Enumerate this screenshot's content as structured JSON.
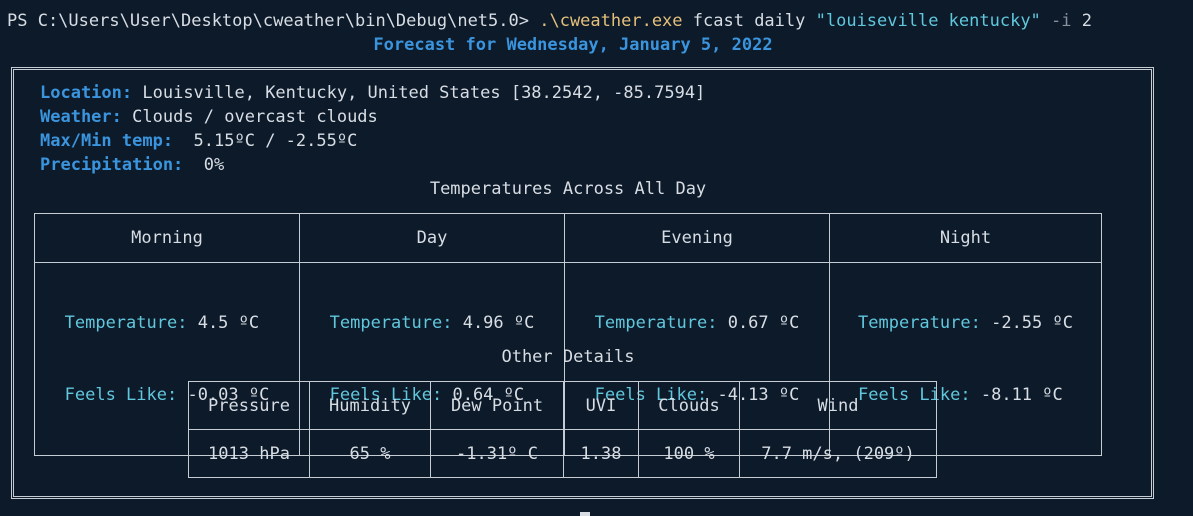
{
  "terminal": {
    "prompt": "PS C:\\Users\\User\\Desktop\\cweather\\bin\\Debug\\net5.0>",
    "executable": ".\\cweather.exe",
    "args": "fcast daily",
    "quoted_arg": "\"louiseville kentucky\"",
    "flag": "-i",
    "flag_value": "2"
  },
  "forecast": {
    "title": "Forecast for Wednesday, January 5, 2022",
    "location_label": "Location:",
    "location_value": "Louisville, Kentucky, United States [38.2542, -85.7594]",
    "weather_label": "Weather:",
    "weather_value": "Clouds / overcast clouds",
    "temp_label": "Max/Min temp:",
    "temp_value": "5.15ºC / -2.55ºC",
    "precip_label": "Precipitation:",
    "precip_value": "0%"
  },
  "temperatures": {
    "title": "Temperatures Across All Day",
    "temp_label": "Temperature:",
    "feels_label": "Feels Like:",
    "periods": [
      {
        "name": "Morning",
        "temp": "4.5 ºC",
        "feels": "-0.03 ºC"
      },
      {
        "name": "Day",
        "temp": "4.96 ºC",
        "feels": "0.64 ºC"
      },
      {
        "name": "Evening",
        "temp": "0.67 ºC",
        "feels": "-4.13 ºC"
      },
      {
        "name": "Night",
        "temp": "-2.55 ºC",
        "feels": "-8.11 ºC"
      }
    ]
  },
  "details": {
    "title": "Other Details",
    "headers": [
      "Pressure",
      "Humidity",
      "Dew Point",
      "UVI",
      "Clouds",
      "Wind"
    ],
    "values": [
      "1013 hPa",
      "65 %",
      "-1.31º C",
      "1.38",
      "100 %",
      "7.7 m/s, (209º)"
    ]
  }
}
